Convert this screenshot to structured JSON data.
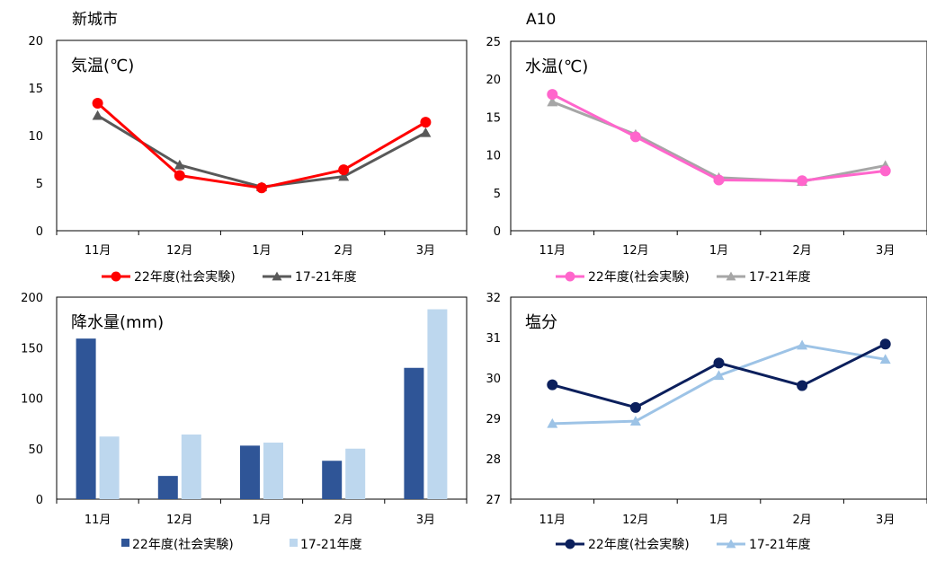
{
  "header": {
    "left_title": "新城市",
    "right_title": "A10"
  },
  "chart_data": [
    {
      "id": "air-temp",
      "type": "line",
      "title": "気温(℃)",
      "categories": [
        "11月",
        "12月",
        "1月",
        "2月",
        "3月"
      ],
      "ylim": [
        0,
        20
      ],
      "yticks": [
        0,
        5,
        10,
        15,
        20
      ],
      "grid": false,
      "legend_position": "bottom",
      "series": [
        {
          "name": "22年度(社会実験)",
          "values": [
            13.4,
            5.8,
            4.5,
            6.4,
            11.4
          ],
          "color": "#ff0000",
          "marker": "circle"
        },
        {
          "name": "17-21年度",
          "values": [
            12.1,
            6.9,
            4.6,
            5.7,
            10.3
          ],
          "color": "#595959",
          "marker": "triangle"
        }
      ]
    },
    {
      "id": "water-temp",
      "type": "line",
      "title": "水温(℃)",
      "categories": [
        "11月",
        "12月",
        "1月",
        "2月",
        "3月"
      ],
      "ylim": [
        0,
        25
      ],
      "yticks": [
        0,
        5,
        10,
        15,
        20,
        25
      ],
      "grid": false,
      "legend_position": "bottom",
      "series": [
        {
          "name": "22年度(社会実験)",
          "values": [
            18.0,
            12.4,
            6.7,
            6.6,
            7.9
          ],
          "color": "#ff66cc",
          "marker": "circle"
        },
        {
          "name": "17-21年度",
          "values": [
            17.0,
            12.7,
            7.0,
            6.5,
            8.6
          ],
          "color": "#a6a6a6",
          "marker": "triangle"
        }
      ]
    },
    {
      "id": "precipitation",
      "type": "bar",
      "title": "降水量(mm)",
      "categories": [
        "11月",
        "12月",
        "1月",
        "2月",
        "3月"
      ],
      "ylim": [
        0,
        200
      ],
      "yticks": [
        0,
        50,
        100,
        150,
        200
      ],
      "grid": false,
      "legend_position": "bottom",
      "series": [
        {
          "name": "22年度(社会実験)",
          "values": [
            159,
            23,
            53,
            38,
            130
          ],
          "color": "#2f5597"
        },
        {
          "name": "17-21年度",
          "values": [
            62,
            64,
            56,
            50,
            188
          ],
          "color": "#bdd7ee"
        }
      ]
    },
    {
      "id": "salinity",
      "type": "line",
      "title": "塩分",
      "categories": [
        "11月",
        "12月",
        "1月",
        "2月",
        "3月"
      ],
      "ylim": [
        27,
        32
      ],
      "yticks": [
        27,
        28,
        29,
        30,
        31,
        32
      ],
      "grid": false,
      "legend_position": "bottom",
      "series": [
        {
          "name": "22年度(社会実験)",
          "values": [
            29.83,
            29.27,
            30.37,
            29.81,
            30.84
          ],
          "color": "#0b1f5c",
          "marker": "circle"
        },
        {
          "name": "17-21年度",
          "values": [
            28.87,
            28.93,
            30.06,
            30.81,
            30.46
          ],
          "color": "#9dc3e6",
          "marker": "triangle"
        }
      ]
    }
  ]
}
